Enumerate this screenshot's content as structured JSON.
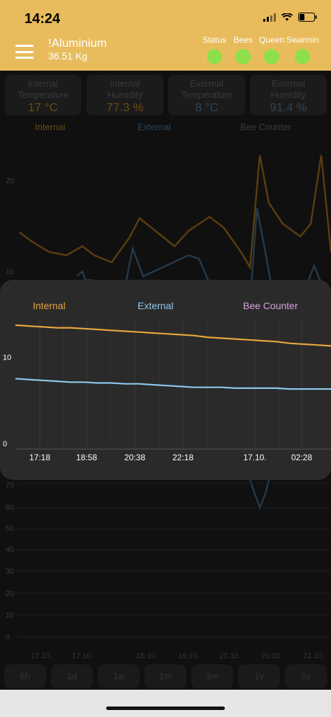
{
  "status_bar": {
    "time": "14:24"
  },
  "header": {
    "name": "!Aluminium",
    "weight": "36.51 Kg"
  },
  "indicators": [
    {
      "label": "Status",
      "color": "#8ee04a"
    },
    {
      "label": "Bees",
      "color": "#8ee04a"
    },
    {
      "label": "Queen",
      "color": "#8ee04a"
    },
    {
      "label": "Swarming",
      "color": "#8ee04a"
    }
  ],
  "cards": [
    {
      "title1": "Internal",
      "title2": "Temperature",
      "value": "17 °C",
      "color": "#6b4a12"
    },
    {
      "title1": "Internal",
      "title2": "Humidity",
      "value": "77.3 %",
      "color": "#6b4a12"
    },
    {
      "title1": "External",
      "title2": "Temperature",
      "value": "8 °C",
      "color": "#2e4558"
    },
    {
      "title1": "External",
      "title2": "Humidity",
      "value": "91.4 %",
      "color": "#2e4558"
    }
  ],
  "bg_legend": [
    "Internal",
    "External",
    "Bee Counter"
  ],
  "bg_y_labels_top": [
    "20",
    "10"
  ],
  "bg_y_labels_bottom": [
    "70",
    "60",
    "50",
    "40",
    "30",
    "20",
    "10",
    "0"
  ],
  "bg_dates": [
    "17.10.",
    "17.10.",
    "18.10.",
    "19.10.",
    "20.10.",
    "20.10.",
    "21.10."
  ],
  "ranges": [
    "6h",
    "1d",
    "1w",
    "1m",
    "3m",
    "1y",
    "5y"
  ],
  "chart_data": {
    "type": "line",
    "series": [
      {
        "name": "Internal",
        "color": "#e8a640",
        "values": [
          14.2,
          14.1,
          14.0,
          13.9,
          13.9,
          13.8,
          13.7,
          13.6,
          13.5,
          13.4,
          13.3,
          13.2,
          13.1,
          13.0,
          12.8,
          12.7,
          12.6,
          12.5,
          12.4,
          12.3,
          12.1,
          12.0,
          11.9,
          11.8
        ]
      },
      {
        "name": "External",
        "color": "#8ec8ec",
        "values": [
          8.0,
          7.9,
          7.8,
          7.7,
          7.6,
          7.6,
          7.5,
          7.5,
          7.4,
          7.4,
          7.3,
          7.2,
          7.1,
          7.0,
          7.0,
          7.0,
          6.9,
          6.9,
          6.9,
          6.9,
          6.8,
          6.8,
          6.8,
          6.8
        ]
      },
      {
        "name": "Bee Counter",
        "color": "#d9a2e0",
        "values": []
      }
    ],
    "x_ticks": [
      "17:18",
      "18:58",
      "20:38",
      "22:18",
      "17.10.",
      "02:28"
    ],
    "y_ticks": [
      "10",
      "0"
    ],
    "ylim": [
      0,
      15
    ]
  }
}
